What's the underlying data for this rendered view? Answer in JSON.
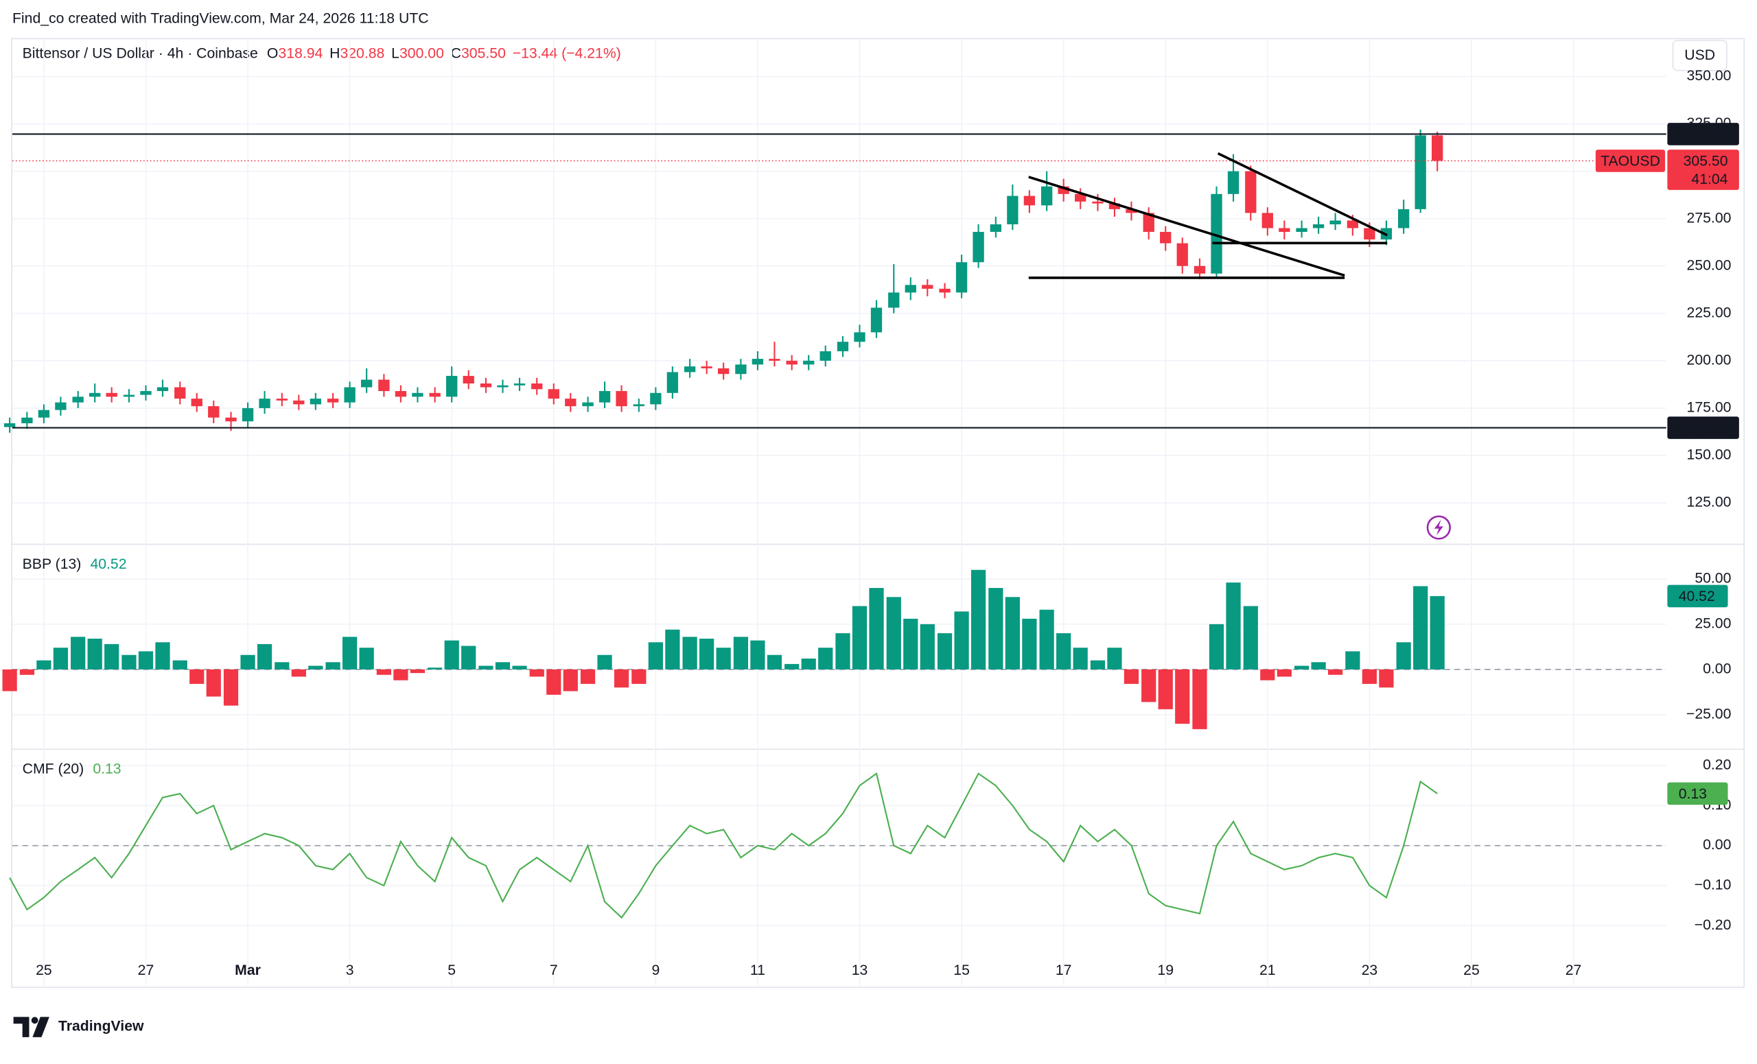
{
  "header": {
    "attribution": "Find_co created with TradingView.com, Mar 24, 2026 11:18 UTC",
    "symbol": "Bittensor / US Dollar · 4h · Coinbase",
    "ohlc": [
      {
        "key": "O",
        "value": "318.94"
      },
      {
        "key": "H",
        "value": "320.88"
      },
      {
        "key": "L",
        "value": "300.00"
      },
      {
        "key": "C",
        "value": "305.50"
      }
    ],
    "change": "−13.44 (−4.21%)",
    "currency": "USD",
    "brand": "TradingView"
  },
  "chart_data": [
    {
      "type": "candlestick",
      "up_color": "#089981",
      "down_color": "#f23645",
      "grid": true,
      "xlim": [
        -0.75,
        31.82
      ],
      "ylim": [
        103.7,
        369.7
      ],
      "yticks": [
        {
          "value": 125,
          "label": "125.00"
        },
        {
          "value": 150,
          "label": "150.00"
        },
        {
          "value": 175,
          "label": "175.00"
        },
        {
          "value": 200,
          "label": "200.00"
        },
        {
          "value": 225,
          "label": "225.00"
        },
        {
          "value": 250,
          "label": "250.00"
        },
        {
          "value": 275,
          "label": "275.00"
        },
        {
          "value": 300,
          "label": "300.00"
        },
        {
          "value": 325,
          "label": "325.00"
        },
        {
          "value": 350,
          "label": "350.00"
        }
      ],
      "x": [
        -0.67,
        -0.33,
        0,
        0.33,
        0.67,
        1,
        1.33,
        1.67,
        2,
        2.33,
        2.67,
        3,
        3.33,
        3.67,
        4,
        4.33,
        4.67,
        5,
        5.33,
        5.67,
        6,
        6.33,
        6.67,
        7,
        7.33,
        7.67,
        8,
        8.33,
        8.67,
        9,
        9.33,
        9.67,
        10,
        10.33,
        10.67,
        11,
        11.33,
        11.67,
        12,
        12.33,
        12.67,
        13,
        13.33,
        13.67,
        14,
        14.33,
        14.67,
        15,
        15.33,
        15.67,
        16,
        16.33,
        16.67,
        17,
        17.33,
        17.67,
        18,
        18.33,
        18.67,
        19,
        19.33,
        19.67,
        20,
        20.33,
        20.67,
        21,
        21.33,
        21.67,
        22,
        22.33,
        22.67,
        23,
        23.33,
        23.67,
        24,
        24.33,
        24.67,
        25,
        25.33,
        25.67,
        26,
        26.33,
        26.67,
        27,
        27.33
      ],
      "open": [
        165,
        167,
        170,
        174,
        178,
        181,
        183,
        181,
        182,
        184,
        186,
        180,
        176,
        170,
        168,
        175,
        180,
        179,
        177,
        180,
        178,
        186,
        190,
        184,
        181,
        183,
        181,
        192,
        188,
        186,
        187,
        188,
        185,
        180,
        176,
        178,
        184,
        176,
        177,
        183,
        194,
        197,
        196,
        193,
        198,
        201,
        200,
        198,
        200,
        205,
        210,
        215,
        228,
        236,
        240,
        238,
        236,
        252,
        268,
        272,
        287,
        282,
        292,
        288,
        284,
        283,
        280,
        278,
        268,
        262,
        250,
        246,
        288,
        300,
        278,
        270,
        268,
        270,
        272,
        274,
        270,
        264,
        270,
        280,
        318.94
      ],
      "high": [
        170,
        173,
        177,
        181,
        184,
        188,
        186,
        185,
        187,
        190,
        189,
        183,
        179,
        173,
        178,
        184,
        183,
        182,
        183,
        183,
        189,
        196,
        193,
        187,
        186,
        186,
        197,
        195,
        191,
        190,
        191,
        191,
        188,
        183,
        181,
        189,
        187,
        180,
        186,
        197,
        201,
        200,
        199,
        201,
        205,
        210,
        203,
        203,
        208,
        213,
        219,
        232,
        251,
        244,
        243,
        241,
        256,
        272,
        276,
        293,
        290,
        300,
        296,
        291,
        288,
        286,
        284,
        281,
        271,
        265,
        254,
        292,
        309,
        303,
        281,
        274,
        274,
        276,
        278,
        277,
        273,
        274,
        285,
        322,
        320.88
      ],
      "low": [
        162,
        164,
        167,
        171,
        175,
        178,
        178,
        178,
        179,
        181,
        177,
        173,
        167,
        163,
        165,
        172,
        176,
        174,
        174,
        175,
        175,
        183,
        181,
        178,
        178,
        178,
        178,
        185,
        183,
        183,
        184,
        182,
        177,
        173,
        173,
        175,
        173,
        173,
        174,
        180,
        191,
        193,
        190,
        190,
        195,
        197,
        195,
        195,
        197,
        202,
        207,
        212,
        225,
        232,
        234,
        233,
        233,
        249,
        265,
        269,
        278,
        279,
        284,
        280,
        279,
        276,
        274,
        264,
        258,
        246,
        243,
        244,
        284,
        274,
        266,
        264,
        265,
        267,
        269,
        266,
        260,
        261,
        267,
        278,
        300
      ],
      "close": [
        167,
        170,
        174,
        178,
        181,
        183,
        181,
        182,
        184,
        186,
        180,
        176,
        170,
        168,
        175,
        180,
        179,
        177,
        180,
        178,
        186,
        190,
        184,
        181,
        183,
        181,
        192,
        188,
        186,
        187,
        188,
        185,
        180,
        176,
        178,
        184,
        176,
        177,
        183,
        194,
        197,
        196,
        193,
        198,
        201,
        200,
        198,
        200,
        205,
        210,
        215,
        228,
        236,
        240,
        238,
        236,
        252,
        268,
        272,
        287,
        282,
        292,
        288,
        284,
        283,
        280,
        278,
        268,
        262,
        250,
        246,
        288,
        300,
        278,
        270,
        268,
        270,
        272,
        274,
        270,
        264,
        270,
        280,
        318.94,
        305.5
      ],
      "hlines": [
        {
          "value": 319.63,
          "color": "#131722"
        },
        {
          "value": 164.63,
          "color": "#131722"
        }
      ],
      "last_price": {
        "value": 305.5,
        "label": "305.50"
      },
      "countdown": "41:04",
      "symbol_tag": "TAOUSD",
      "last_color": "#f23645"
    },
    {
      "type": "bar",
      "name": "BBP (13)",
      "up_color": "#089981",
      "down_color": "#f23645",
      "grid": true,
      "zero_line": true,
      "xlim": [
        -0.75,
        31.82
      ],
      "ylim": [
        -43.5,
        68.5
      ],
      "yticks": [
        {
          "value": -25,
          "label": "−25.00"
        },
        {
          "value": 0,
          "label": "0.00"
        },
        {
          "value": 25,
          "label": "25.00"
        },
        {
          "value": 50,
          "label": "50.00"
        }
      ],
      "values": [
        -12,
        -3,
        5,
        12,
        18,
        17,
        14,
        8,
        10,
        15,
        5,
        -8,
        -15,
        -20,
        8,
        14,
        4,
        -4,
        2,
        4,
        18,
        12,
        -3,
        -6,
        -2,
        1,
        16,
        13,
        2,
        4,
        2,
        -4,
        -14,
        -12,
        -8,
        8,
        -10,
        -8,
        15,
        22,
        18,
        17,
        12,
        18,
        16,
        8,
        3,
        6,
        12,
        20,
        35,
        45,
        40,
        28,
        25,
        20,
        32,
        55,
        45,
        40,
        28,
        33,
        20,
        12,
        5,
        12,
        -8,
        -18,
        -22,
        -30,
        -33,
        25,
        48,
        35,
        -6,
        -4,
        2,
        4,
        -3,
        10,
        -8,
        -10,
        15,
        46,
        40.52
      ]
    },
    {
      "type": "line",
      "name": "CMF (20)",
      "color": "#4caf50",
      "grid": true,
      "zero_line": true,
      "xlim": [
        -0.75,
        31.82
      ],
      "ylim": [
        -0.35,
        0.238
      ],
      "yticks": [
        {
          "value": -0.2,
          "label": "−0.20"
        },
        {
          "value": -0.1,
          "label": "−0.10"
        },
        {
          "value": 0,
          "label": "0.00"
        },
        {
          "value": 0.1,
          "label": "0.10"
        },
        {
          "value": 0.2,
          "label": "0.20"
        }
      ],
      "xticks": [
        {
          "value": 0,
          "label": "25"
        },
        {
          "value": 2,
          "label": "27"
        },
        {
          "value": 4,
          "label": "Mar"
        },
        {
          "value": 6,
          "label": "3"
        },
        {
          "value": 8,
          "label": "5"
        },
        {
          "value": 10,
          "label": "7"
        },
        {
          "value": 12,
          "label": "9"
        },
        {
          "value": 14,
          "label": "11"
        },
        {
          "value": 16,
          "label": "13"
        },
        {
          "value": 18,
          "label": "15"
        },
        {
          "value": 20,
          "label": "17"
        },
        {
          "value": 22,
          "label": "19"
        },
        {
          "value": 24,
          "label": "21"
        },
        {
          "value": 26,
          "label": "23"
        },
        {
          "value": 28,
          "label": "25"
        },
        {
          "value": 30,
          "label": "27"
        }
      ],
      "values": [
        -0.08,
        -0.16,
        -0.13,
        -0.09,
        -0.06,
        -0.03,
        -0.08,
        -0.02,
        0.05,
        0.12,
        0.13,
        0.08,
        0.1,
        -0.01,
        0.01,
        0.03,
        0.02,
        0.0,
        -0.05,
        -0.06,
        -0.02,
        -0.08,
        -0.1,
        0.01,
        -0.05,
        -0.09,
        0.02,
        -0.03,
        -0.05,
        -0.14,
        -0.06,
        -0.03,
        -0.06,
        -0.09,
        0.0,
        -0.14,
        -0.18,
        -0.12,
        -0.05,
        0.0,
        0.05,
        0.03,
        0.04,
        -0.03,
        0.0,
        -0.01,
        0.03,
        0.0,
        0.03,
        0.08,
        0.15,
        0.18,
        0.0,
        -0.02,
        0.05,
        0.02,
        0.1,
        0.18,
        0.15,
        0.1,
        0.04,
        0.01,
        -0.04,
        0.05,
        0.01,
        0.04,
        0.0,
        -0.12,
        -0.15,
        -0.16,
        -0.17,
        0.0,
        0.06,
        -0.02,
        -0.04,
        -0.06,
        -0.05,
        -0.03,
        -0.02,
        -0.03,
        -0.1,
        -0.13,
        0.0,
        0.16,
        0.13
      ]
    }
  ]
}
